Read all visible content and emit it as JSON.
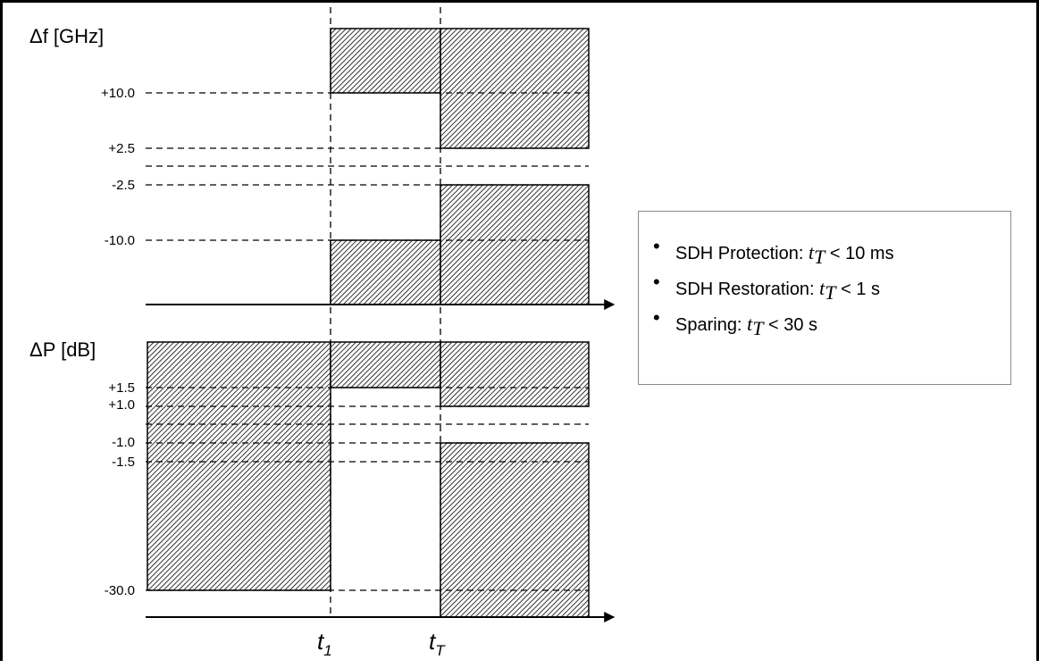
{
  "top_axis": {
    "title": "Δf [GHz]",
    "ticks": [
      "+10.0",
      "+2.5",
      "-2.5",
      "-10.0"
    ]
  },
  "bottom_axis": {
    "title": "ΔP [dB]",
    "ticks": [
      "+1.5",
      "+1.0",
      "-1.0",
      "-1.5",
      "-30.0"
    ]
  },
  "time_labels": [
    {
      "base": "t",
      "sub": "1"
    },
    {
      "base": "t",
      "sub": "T"
    }
  ],
  "legend": [
    {
      "prefix": "SDH Protection: ",
      "var": "t",
      "sub": "T",
      "suffix": " < 10 ms"
    },
    {
      "prefix": "SDH Restoration: ",
      "var": "t",
      "sub": "T",
      "suffix": " < 1 s"
    },
    {
      "prefix": "Sparing: ",
      "var": "t",
      "sub": "T",
      "suffix": " < 30 s"
    }
  ],
  "colors": {
    "hatch": "#000000",
    "background": "#ffffff",
    "legend_border": "#8a8a8a"
  }
}
